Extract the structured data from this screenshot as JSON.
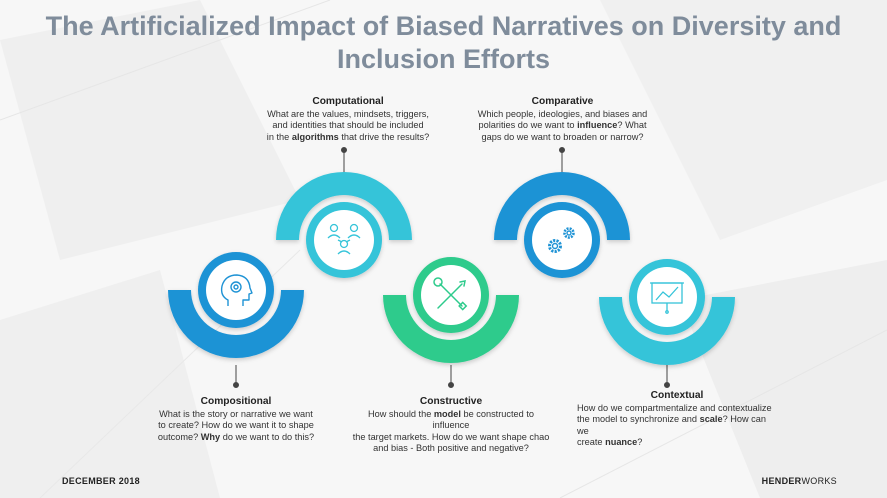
{
  "title": "The Artificialized Impact of Biased Narratives on Diversity and Inclusion Efforts",
  "colors": {
    "blue": "#1f93d5",
    "cyan": "#35c4d9",
    "green": "#2ecb8c",
    "title": "#7f8c9b"
  },
  "nodes": {
    "computational": {
      "heading": "Computational",
      "text": [
        "What are the values, mindsets, triggers,",
        "and identities that should be included",
        "in the ",
        "algorithms",
        " that drive the results?"
      ],
      "icon": "people-network-icon"
    },
    "comparative": {
      "heading": "Comparative",
      "text": [
        "Which people, ideologies, and biases and",
        "polarities do we want to ",
        "influence",
        "?  What",
        "gaps do we want to broaden or narrow?"
      ],
      "icon": "gears-icon"
    },
    "compositional": {
      "heading": "Compositional",
      "text": [
        "What is the story or narrative we want",
        "to create?  How do we want it to shape",
        "outcome? ",
        "Why",
        " do we want to do this?"
      ],
      "icon": "head-gear-icon"
    },
    "constructive": {
      "heading": "Constructive",
      "text": [
        "How should the ",
        "model",
        " be constructed to influence",
        "the target markets.   How do we want shape chao",
        "and bias - Both positive and negative?"
      ],
      "icon": "pencil-wrench-icon"
    },
    "contextual": {
      "heading": "Contextual",
      "text": [
        "How do we compartmentalize and contextualize",
        "the model to synchronize and ",
        "scale",
        "?  How can we",
        "create ",
        "nuance",
        "?"
      ],
      "icon": "presentation-board-icon"
    }
  },
  "footer": {
    "date": "DECEMBER 2018",
    "brand_bold": "HENDER",
    "brand_light": "WORKS"
  }
}
